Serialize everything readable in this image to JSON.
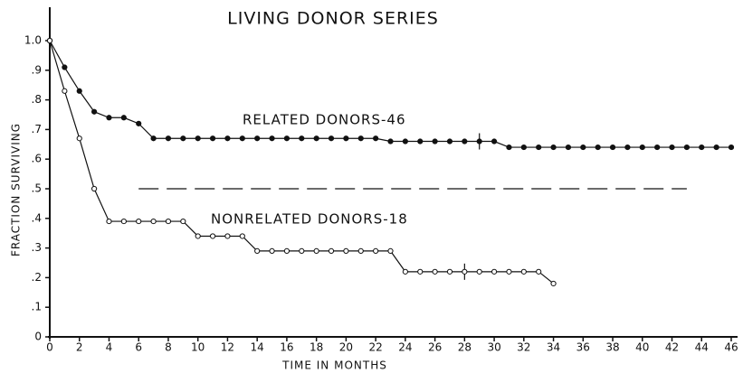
{
  "chart_data": {
    "type": "line",
    "title": "LIVING DONOR SERIES",
    "x_label": "TIME IN MONTHS",
    "y_label": "FRACTION SURVIVING",
    "annotations": [
      "RELATED DONORS-46",
      "NONRELATED DONORS-18"
    ],
    "xlim": [
      0,
      46
    ],
    "xticks": [
      0,
      2,
      4,
      6,
      8,
      10,
      12,
      14,
      16,
      18,
      20,
      22,
      24,
      26,
      28,
      30,
      32,
      34,
      36,
      38,
      40,
      42,
      44,
      46
    ],
    "ylim": [
      0,
      1.0
    ],
    "yticks": [
      0,
      {
        "value": 0.1,
        "label": ".1"
      },
      {
        "value": 0.2,
        "label": ".2"
      },
      {
        "value": 0.3,
        "label": ".3"
      },
      {
        "value": 0.4,
        "label": ".4"
      },
      {
        "value": 0.5,
        "label": ".5"
      },
      {
        "value": 0.6,
        "label": ".6"
      },
      {
        "value": 0.7,
        "label": ".7"
      },
      {
        "value": 0.8,
        "label": ".8"
      },
      {
        "value": 0.9,
        "label": ".9"
      },
      {
        "value": 1.0,
        "label": "1.0"
      }
    ],
    "reference_line": {
      "y": 0.5,
      "x": [
        6,
        43
      ]
    },
    "series": [
      {
        "name": "RELATED DONORS-46",
        "color": "#111111",
        "filled": true,
        "censored_at": 29,
        "x": [
          0,
          1,
          2,
          3,
          4,
          5,
          6,
          7,
          8,
          9,
          10,
          11,
          12,
          13,
          14,
          15,
          16,
          17,
          18,
          19,
          20,
          21,
          22,
          23,
          24,
          25,
          26,
          27,
          28,
          29,
          30,
          31,
          32,
          33,
          34,
          35,
          36,
          37,
          38,
          39,
          40,
          41,
          42,
          43,
          44,
          45,
          46
        ],
        "values": [
          1.0,
          0.91,
          0.83,
          0.76,
          0.74,
          0.74,
          0.72,
          0.67,
          0.67,
          0.67,
          0.67,
          0.67,
          0.67,
          0.67,
          0.67,
          0.67,
          0.67,
          0.67,
          0.67,
          0.67,
          0.67,
          0.67,
          0.67,
          0.66,
          0.66,
          0.66,
          0.66,
          0.66,
          0.66,
          0.66,
          0.66,
          0.64,
          0.64,
          0.64,
          0.64,
          0.64,
          0.64,
          0.64,
          0.64,
          0.64,
          0.64,
          0.64,
          0.64,
          0.64,
          0.64,
          0.64,
          0.64
        ]
      },
      {
        "name": "NONRELATED DONORS-18",
        "color": "#111111",
        "filled": false,
        "censored_at": 28,
        "x": [
          0,
          1,
          2,
          3,
          4,
          5,
          6,
          7,
          8,
          9,
          10,
          11,
          12,
          13,
          14,
          15,
          16,
          17,
          18,
          19,
          20,
          21,
          22,
          23,
          24,
          25,
          26,
          27,
          28,
          29,
          30,
          31,
          32,
          33,
          34
        ],
        "values": [
          1.0,
          0.83,
          0.67,
          0.5,
          0.39,
          0.39,
          0.39,
          0.39,
          0.39,
          0.39,
          0.34,
          0.34,
          0.34,
          0.34,
          0.29,
          0.29,
          0.29,
          0.29,
          0.29,
          0.29,
          0.29,
          0.29,
          0.29,
          0.29,
          0.22,
          0.22,
          0.22,
          0.22,
          0.22,
          0.22,
          0.22,
          0.22,
          0.22,
          0.22,
          0.18
        ]
      }
    ]
  }
}
